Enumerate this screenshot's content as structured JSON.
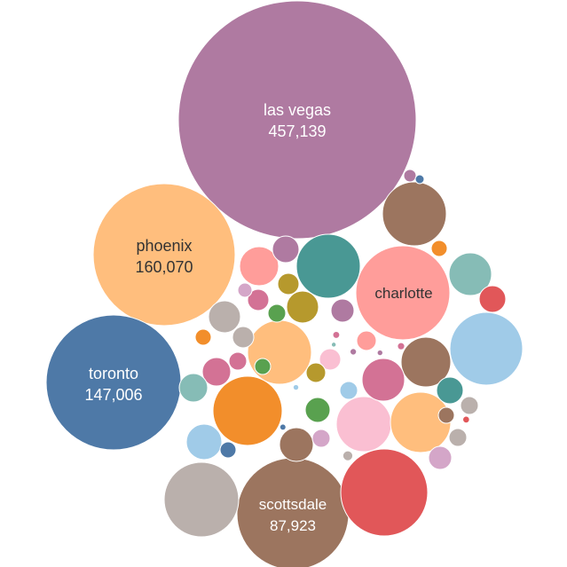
{
  "chart_data": {
    "type": "packed-bubble",
    "palette": {
      "purple": "#af7aa1",
      "orange_light": "#ffbe7d",
      "blue_dark": "#4e79a7",
      "brown": "#9c755f",
      "pink_salmon": "#ff9d9a",
      "red": "#e15759",
      "gray": "#bab0ac",
      "blue_light": "#a0cbe8",
      "teal": "#499894",
      "teal_light": "#86bcb6",
      "orange": "#f28e2b",
      "pink": "#fabfd2",
      "mauve": "#d37295",
      "green": "#59a14f",
      "olive": "#b6992d",
      "tan": "#d4a6c8"
    },
    "labeled": [
      {
        "name": "las vegas",
        "value": "457,139",
        "numeric": 457139
      },
      {
        "name": "phoenix",
        "value": "160,070",
        "numeric": 160070
      },
      {
        "name": "toronto",
        "value": "147,006",
        "numeric": 147006
      },
      {
        "name": "charlotte",
        "value": "",
        "numeric": 0
      },
      {
        "name": "scottsdale",
        "value": "87,923",
        "numeric": 87923
      }
    ]
  }
}
